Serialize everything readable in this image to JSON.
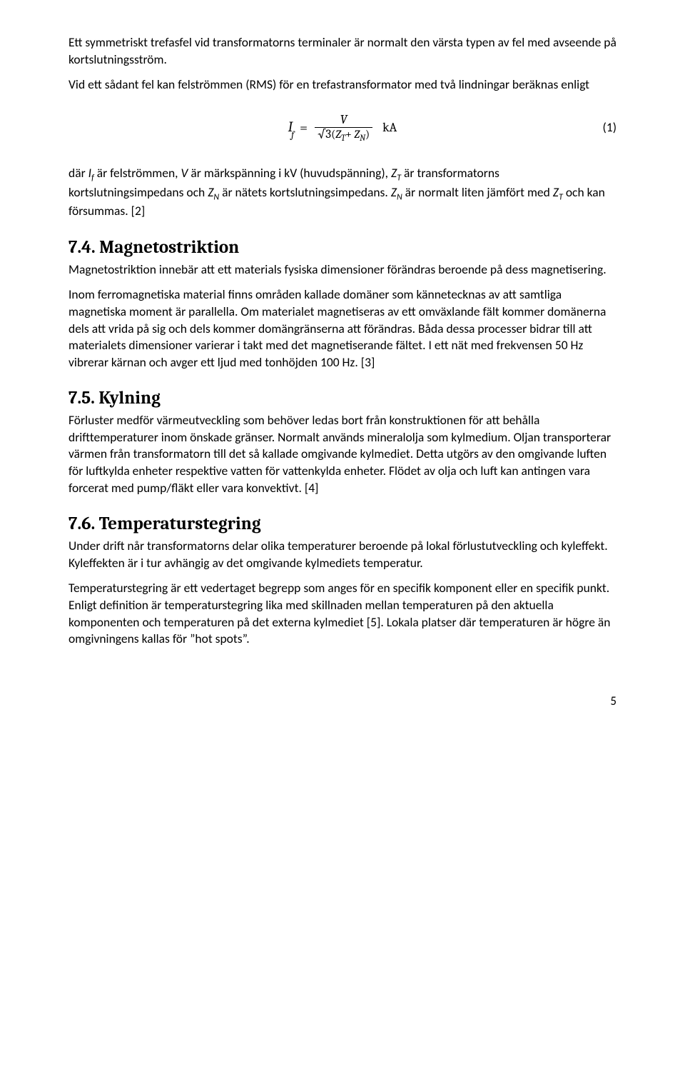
{
  "p1": "Ett symmetriskt trefasfel vid transformatorns terminaler är normalt den värsta typen av fel med avseende på kortslutningsström.",
  "p2": "Vid ett sådant fel kan felströmmen (RMS) för en trefastransformator med två lindningar beräknas enligt",
  "equation": {
    "lhs_symbol": "I",
    "lhs_sub": "f",
    "eq": "=",
    "num": "V",
    "den_sqrt": "√3",
    "den_open": "(",
    "den_z1": "Z",
    "den_z1_sub": "T",
    "den_plus": "+ ",
    "den_z2": "Z",
    "den_z2_sub": "N",
    "den_close": ")",
    "unit": "kA",
    "number": "(1)"
  },
  "p3_a": "där ",
  "p3_if_i": "I",
  "p3_if_sub": "f",
  "p3_b": " är felströmmen, ",
  "p3_v": "V",
  "p3_c": " är märkspänning i kV (huvudspänning), ",
  "p3_zt_z": "Z",
  "p3_zt_sub": "T",
  "p3_d": " är transformatorns kortslutningsimpedans och ",
  "p3_zn_z": "Z",
  "p3_zn_sub": "N",
  "p3_e": " är nätets kortslutningsimpedans. ",
  "p3_zn2_z": "Z",
  "p3_zn2_sub": "N",
  "p3_f": " är normalt liten jämfört med ",
  "p3_zt2_z": "Z",
  "p3_zt2_sub": "T",
  "p3_g": " och kan försummas. [2]",
  "s74_title": "7.4. Magnetostriktion",
  "s74_p1": "Magnetostriktion innebär att ett materials fysiska dimensioner förändras beroende på dess magnetisering.",
  "s74_p2": "Inom ferromagnetiska material finns områden kallade domäner som kännetecknas av att samtliga magnetiska moment är parallella. Om materialet magnetiseras av ett omväxlande fält kommer domänerna dels att vrida på sig och dels kommer domängränserna att förändras. Båda dessa processer bidrar till att materialets dimensioner varierar i takt med det magnetiserande fältet. I ett nät med frekvensen 50 Hz vibrerar kärnan och avger ett ljud med tonhöjden 100 Hz. [3]",
  "s75_title": "7.5. Kylning",
  "s75_p1": "Förluster medför värmeutveckling som behöver ledas bort från konstruktionen för att behålla drifttemperaturer inom önskade gränser. Normalt används mineralolja som kylmedium. Oljan transporterar värmen från transformatorn till det så kallade omgivande kylmediet. Detta utgörs av den omgivande luften för luftkylda enheter respektive vatten för vattenkylda enheter. Flödet av olja och luft kan antingen vara forcerat med pump/fläkt eller vara konvektivt. [4]",
  "s76_title": "7.6. Temperaturstegring",
  "s76_p1": "Under drift når transformatorns delar olika temperaturer beroende på lokal förlustutveckling och kyleffekt. Kyleffekten är i tur avhängig av det omgivande kylmediets temperatur.",
  "s76_p2": "Temperaturstegring är ett vedertaget begrepp som anges för en specifik komponent eller en specifik punkt. Enligt definition är temperaturstegring lika med skillnaden mellan temperaturen på den aktuella komponenten och temperaturen på det externa kylmediet [5]. Lokala platser där temperaturen är högre än omgivningens kallas för ”hot spots”.",
  "page_number": "5"
}
